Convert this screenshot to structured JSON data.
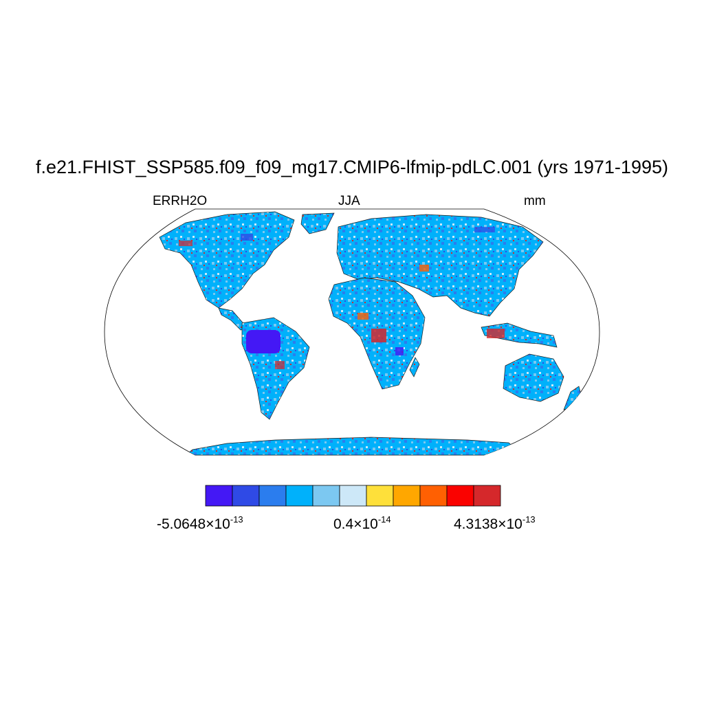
{
  "title": "f.e21.FHIST_SSP585.f09_f09_mg17.CMIP6-lfmip-pdLC.001 (yrs 1971-1995)",
  "left_label": "ERRH2O",
  "center_label": "JJA",
  "right_label": "mm",
  "colorbar": {
    "colors": [
      "#4418F5",
      "#2F4AE6",
      "#2B7DEE",
      "#00B1FB",
      "#7CC8F1",
      "#CDE8F8",
      "#FEE03A",
      "#FFA700",
      "#FF6002",
      "#FA0200",
      "#D5282B"
    ],
    "labels": [
      {
        "mantissa": "-5.0648",
        "exponent": "-13"
      },
      {
        "mantissa": "0.4",
        "exponent": "-14"
      },
      {
        "mantissa": "4.3138",
        "exponent": "-13"
      }
    ]
  },
  "map": {
    "projection": "robinson",
    "land_fill_dominant": "#00B1FB",
    "ocean_fill": "#FFFFFF"
  }
}
